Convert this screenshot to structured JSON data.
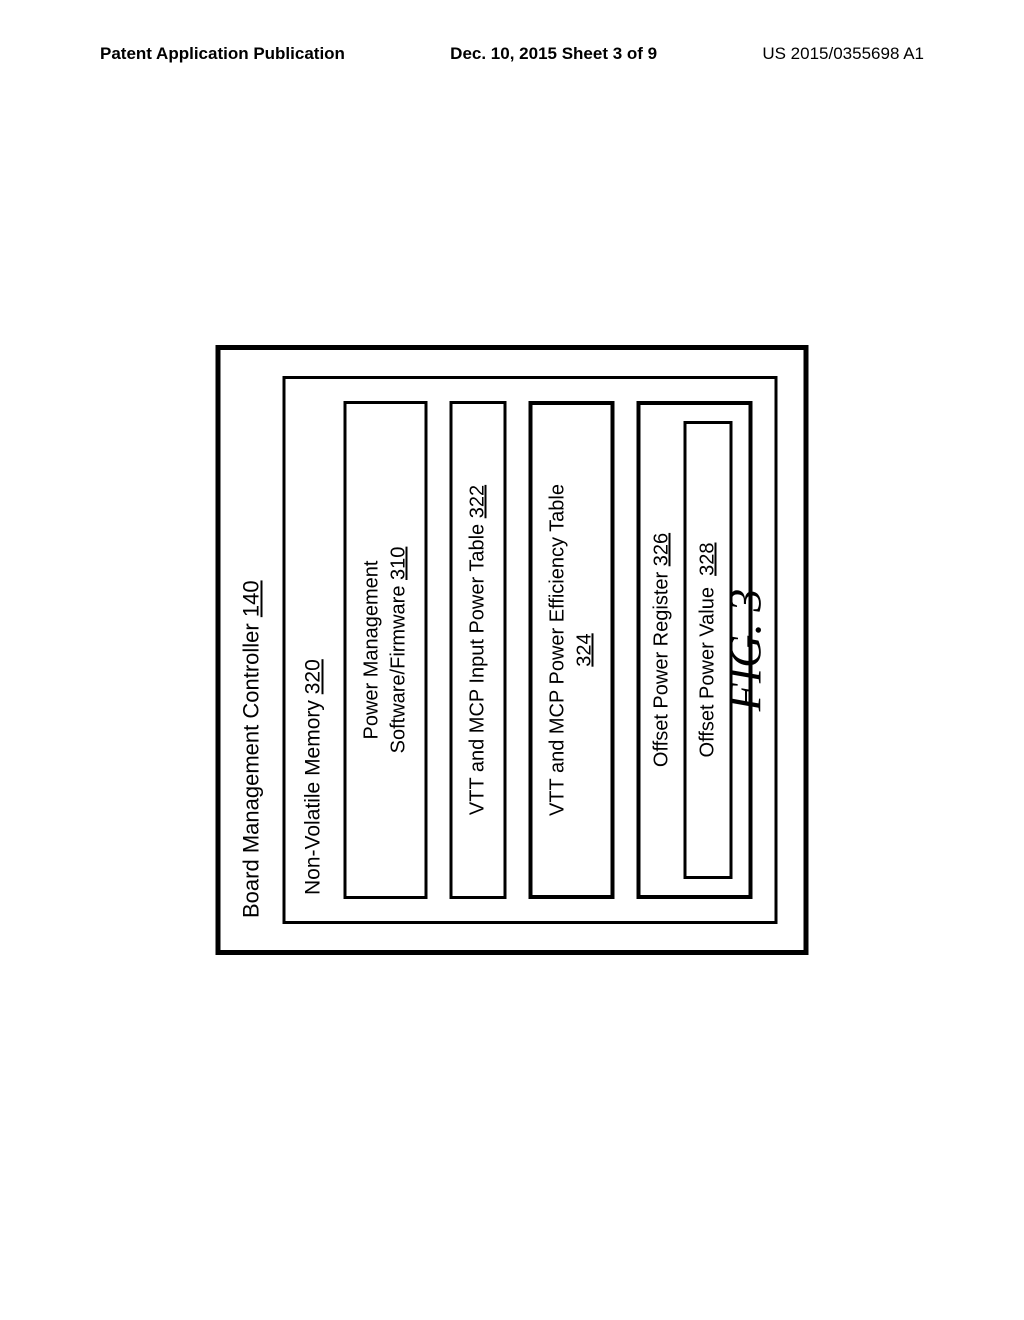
{
  "header": {
    "left": "Patent Application Publication",
    "center": "Dec. 10, 2015  Sheet 3 of 9",
    "right": "US 2015/0355698 A1"
  },
  "diagram": {
    "outer_title_text": "Board Management Controller",
    "outer_title_ref": "140",
    "mem_title_text": "Non-Volatile Memory",
    "mem_title_ref": "320",
    "box1_line1": "Power Management",
    "box1_line2_text": "Software/Firmware",
    "box1_line2_ref": "310",
    "box2_text": "VTT and MCP Input Power Table",
    "box2_ref": "322",
    "box3_line1": "VTT and MCP Power Efficiency Table",
    "box3_ref": "324",
    "reg_title_text": "Offset Power Register",
    "reg_title_ref": "326",
    "reg_inner_text": "Offset Power Value",
    "reg_inner_ref": "328"
  },
  "fig_label": "FIG. 3"
}
